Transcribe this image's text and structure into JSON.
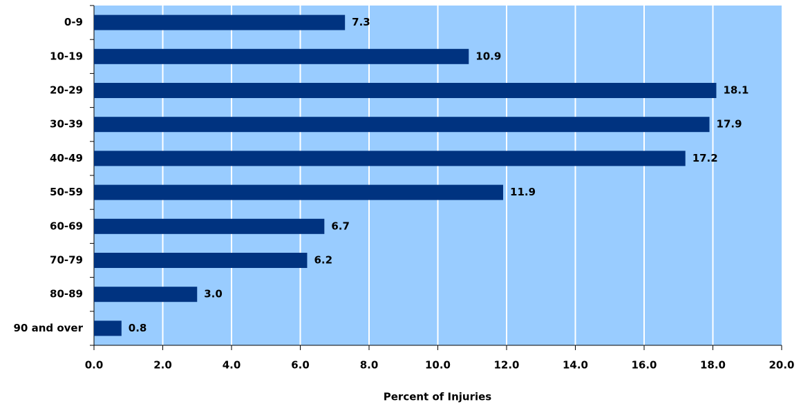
{
  "chart_data": {
    "type": "bar",
    "orientation": "horizontal",
    "x_label": "Percent of Injuries",
    "categories": [
      "0-9",
      "10-19",
      "20-29",
      "30-39",
      "40-49",
      "50-59",
      "60-69",
      "70-79",
      "80-89",
      "90 and over"
    ],
    "values": [
      7.3,
      10.9,
      18.1,
      17.9,
      17.2,
      11.9,
      6.7,
      6.2,
      3.0,
      0.8
    ],
    "value_labels": [
      "7.3",
      "10.9",
      "18.1",
      "17.9",
      "17.2",
      "11.9",
      "6.7",
      "6.2",
      "3.0",
      "0.8"
    ],
    "color": "#003380",
    "background": "#99ccff",
    "grid": true,
    "xlim": [
      0,
      20
    ],
    "xticks": [
      {
        "value": 0,
        "label": "0.0"
      },
      {
        "value": 2,
        "label": "2.0"
      },
      {
        "value": 4,
        "label": "4.0"
      },
      {
        "value": 6,
        "label": "6.0"
      },
      {
        "value": 8,
        "label": "8.0"
      },
      {
        "value": 10,
        "label": "10.0"
      },
      {
        "value": 12,
        "label": "12.0"
      },
      {
        "value": 14,
        "label": "14.0"
      },
      {
        "value": 16,
        "label": "16.0"
      },
      {
        "value": 18,
        "label": "18.0"
      },
      {
        "value": 20,
        "label": "20.0"
      }
    ]
  }
}
